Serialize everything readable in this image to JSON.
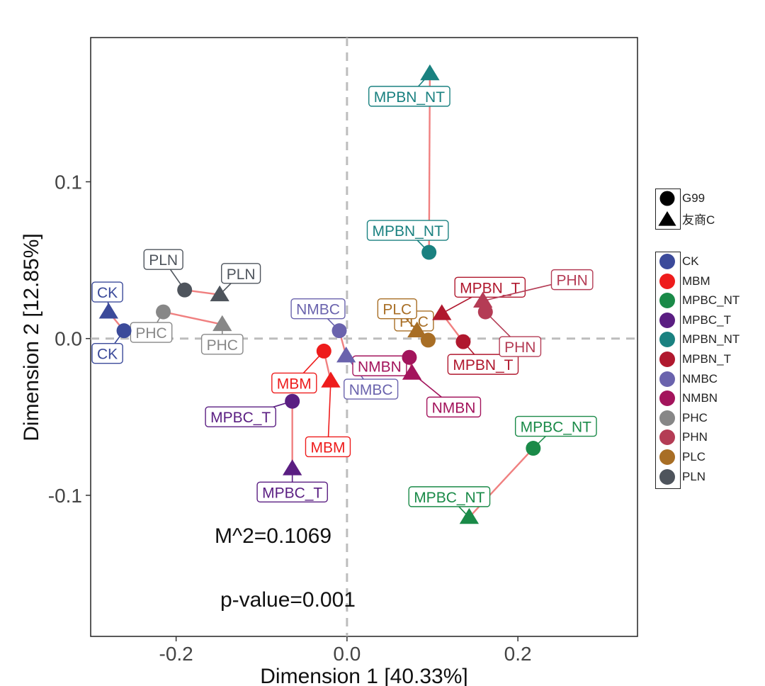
{
  "chart_data": {
    "type": "scatter",
    "xlabel": "Dimension 1 [40.33%]",
    "ylabel": "Dimension 2 [12.85%]",
    "xlim": [
      -0.3,
      0.34
    ],
    "ylim": [
      -0.19,
      0.192
    ],
    "xticks": [
      {
        "value": -0.2,
        "label": "-0.2"
      },
      {
        "value": 0.0,
        "label": "0.0"
      },
      {
        "value": 0.2,
        "label": "0.2"
      }
    ],
    "yticks": [
      {
        "value": -0.1,
        "label": "-0.1"
      },
      {
        "value": 0.0,
        "label": "0.0"
      },
      {
        "value": 0.1,
        "label": "0.1"
      }
    ],
    "grid": false,
    "reference_lines": {
      "x": 0,
      "y": 0,
      "style": "dashed",
      "color": "#bdbdbd"
    },
    "connector_color": "#f08080",
    "annotations": {
      "m2": "M^2=0.1069",
      "pvalue": "p-value=0.001"
    },
    "shape_legend": [
      {
        "shape": "circle",
        "label": "G99"
      },
      {
        "shape": "triangle",
        "label": "友商C"
      }
    ],
    "groups": [
      {
        "name": "CK",
        "color": "#3b4a9a",
        "circle": [
          -0.261,
          0.005
        ],
        "triangle": [
          -0.279,
          0.017
        ]
      },
      {
        "name": "MBM",
        "color": "#ee1c1c",
        "circle": [
          -0.027,
          -0.008
        ],
        "triangle": [
          -0.019,
          -0.027
        ]
      },
      {
        "name": "MPBC_NT",
        "color": "#1a8a48",
        "circle": [
          0.218,
          -0.07
        ],
        "triangle": [
          0.143,
          -0.114
        ]
      },
      {
        "name": "MPBC_T",
        "color": "#5a1e82",
        "circle": [
          -0.064,
          -0.04
        ],
        "triangle": [
          -0.064,
          -0.083
        ]
      },
      {
        "name": "MPBN_NT",
        "color": "#1a8180",
        "circle": [
          0.096,
          0.055
        ],
        "triangle": [
          0.097,
          0.169
        ]
      },
      {
        "name": "MPBN_T",
        "color": "#b0182e",
        "circle": [
          0.136,
          -0.002
        ],
        "triangle": [
          0.111,
          0.016
        ]
      },
      {
        "name": "NMBC",
        "color": "#6a63ad",
        "circle": [
          -0.009,
          0.005
        ],
        "triangle": [
          -0.001,
          -0.011
        ]
      },
      {
        "name": "NMBN",
        "color": "#a3145c",
        "circle": [
          0.073,
          -0.012
        ],
        "triangle": [
          0.076,
          -0.022
        ]
      },
      {
        "name": "PHC",
        "color": "#878787",
        "circle": [
          -0.215,
          0.017
        ],
        "triangle": [
          -0.146,
          0.009
        ]
      },
      {
        "name": "PHN",
        "color": "#b43c55",
        "circle": [
          0.162,
          0.017
        ],
        "triangle": [
          0.159,
          0.024
        ]
      },
      {
        "name": "PLC",
        "color": "#a86e25",
        "circle": [
          0.095,
          -0.001
        ],
        "triangle": [
          0.082,
          0.005
        ]
      },
      {
        "name": "PLN",
        "color": "#4e545c",
        "circle": [
          -0.19,
          0.031
        ],
        "triangle": [
          -0.149,
          0.028
        ]
      }
    ]
  }
}
